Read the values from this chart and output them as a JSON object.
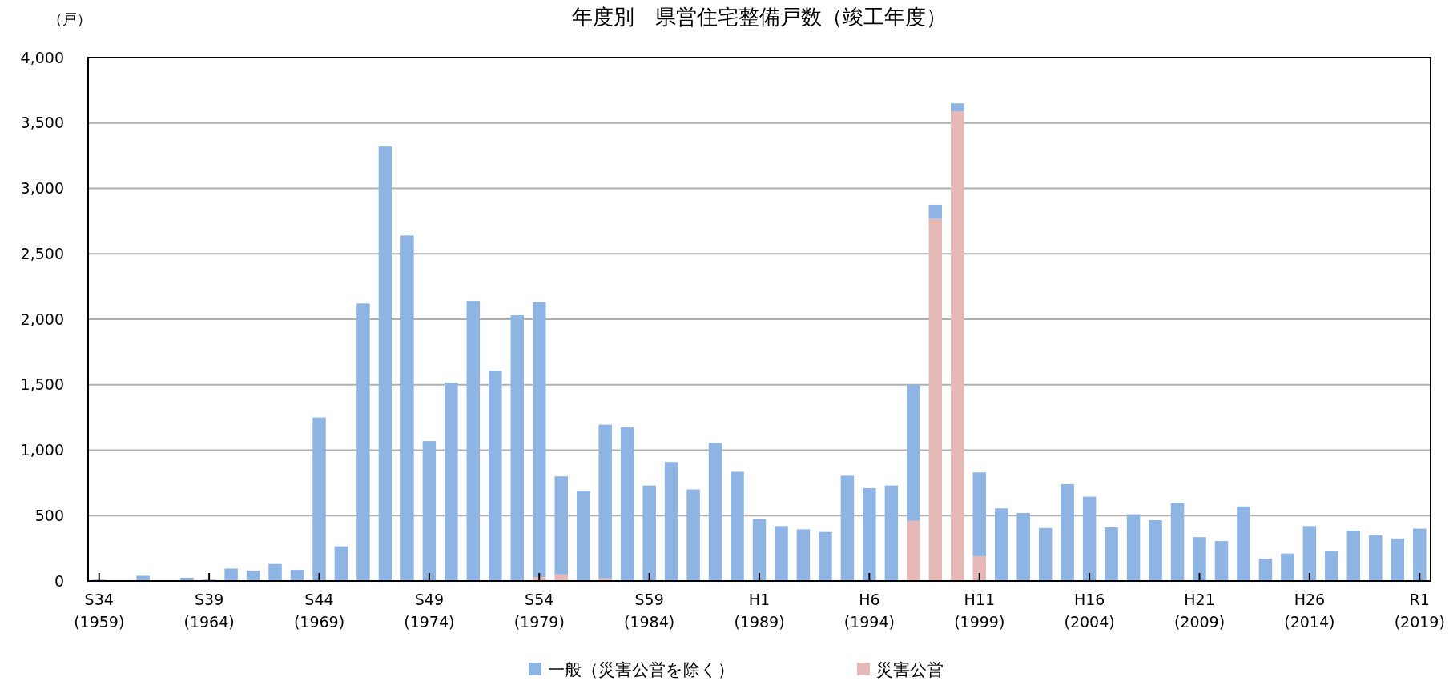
{
  "chart_data": {
    "type": "bar",
    "title": "年度別　県営住宅整備戸数（竣工年度）",
    "ylabel": "（戸）",
    "categories": [
      "S34\n(1959)",
      null,
      null,
      null,
      null,
      "S39\n(1964)",
      null,
      null,
      null,
      null,
      "S44\n(1969)",
      null,
      null,
      null,
      null,
      "S49\n(1974)",
      null,
      null,
      null,
      null,
      "S54\n(1979)",
      null,
      null,
      null,
      null,
      "S59\n(1984)",
      null,
      null,
      null,
      null,
      "H1\n(1989)",
      null,
      null,
      null,
      null,
      "H6\n(1994)",
      null,
      null,
      null,
      null,
      "H11\n(1999)",
      null,
      null,
      null,
      null,
      "H16\n(2004)",
      null,
      null,
      null,
      null,
      "H21\n(2009)",
      null,
      null,
      null,
      null,
      "H26\n(2014)",
      null,
      null,
      null,
      null,
      "R1\n(2019)"
    ],
    "stacked": true,
    "series": [
      {
        "name": "災害公営",
        "color": "#e6b8b7",
        "values": [
          0,
          0,
          0,
          0,
          0,
          0,
          0,
          0,
          0,
          0,
          null,
          0,
          0,
          0,
          null,
          0,
          0,
          0,
          null,
          0,
          30,
          50,
          null,
          20,
          null,
          0,
          0,
          0,
          0,
          0,
          0,
          0,
          0,
          0,
          0,
          0,
          0,
          460,
          2770,
          3590,
          190,
          0,
          0,
          0,
          0,
          0,
          0,
          0,
          0,
          0,
          0,
          0,
          0,
          0,
          0,
          0,
          0,
          0,
          0,
          0,
          0
        ]
      },
      {
        "name": "一般（災害公営を除く）",
        "color": "#8eb4e3",
        "values": [
          10,
          0,
          40,
          0,
          25,
          10,
          95,
          80,
          130,
          85,
          1250,
          265,
          2120,
          3320,
          2640,
          1070,
          1515,
          2140,
          1605,
          2030,
          2100,
          750,
          690,
          1175,
          1175,
          730,
          910,
          700,
          1055,
          835,
          475,
          420,
          395,
          375,
          805,
          710,
          730,
          1040,
          105,
          60,
          640,
          555,
          520,
          405,
          740,
          645,
          410,
          510,
          465,
          595,
          335,
          305,
          570,
          170,
          210,
          420,
          230,
          385,
          350,
          325,
          400
        ]
      }
    ],
    "ylim": [
      0,
      4000
    ],
    "yticks": [
      0,
      500,
      {
        "value": 1000,
        "label": "1,000"
      },
      {
        "value": 1500,
        "label": "1,500"
      },
      {
        "value": 2000,
        "label": "2,000"
      },
      {
        "value": 2500,
        "label": "2,500"
      },
      {
        "value": 3000,
        "label": "3,000"
      },
      {
        "value": 3500,
        "label": "3,500"
      },
      {
        "value": 4000,
        "label": "4,000"
      }
    ],
    "grid": "y",
    "legend": "bottom"
  }
}
